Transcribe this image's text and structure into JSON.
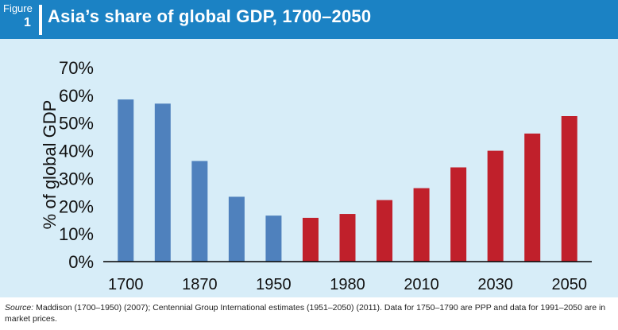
{
  "header": {
    "figure_word": "Figure",
    "figure_number": "1",
    "title": "Asia’s share of global GDP, 1700–2050"
  },
  "footer": {
    "source_label": "Source:",
    "source_text": "Maddison (1700–1950) (2007); Centennial Group International estimates (1951–2050) (2011). Data for 1750–1790 are PPP and data for 1991–2050 are in market prices."
  },
  "colors": {
    "historical": "#4f81bd",
    "projected": "#c0202b",
    "header_bg": "#1b82c4",
    "plot_bg": "#d7edf8"
  },
  "chart_data": {
    "type": "bar",
    "title": "Asia’s share of global GDP, 1700–2050",
    "xlabel": "",
    "ylabel": "% of global GDP",
    "ylim": [
      0,
      70
    ],
    "yticks": [
      0,
      10,
      20,
      30,
      40,
      50,
      60,
      70
    ],
    "ytick_labels": [
      "0%",
      "10%",
      "20%",
      "30%",
      "40%",
      "50%",
      "60%",
      "70%"
    ],
    "x_tick_labels": [
      "1700",
      "1870",
      "1950",
      "1980",
      "2010",
      "2030",
      "2050"
    ],
    "x_tick_bar_index": [
      0,
      2,
      4,
      6,
      8,
      10,
      12
    ],
    "grid": false,
    "legend": "none",
    "values": [
      58.5,
      57,
      36.3,
      23.4,
      16.6,
      15.8,
      17.2,
      22.2,
      26.5,
      34,
      40,
      46.2,
      52.5
    ],
    "series_type": [
      "historical",
      "historical",
      "historical",
      "historical",
      "historical",
      "projected",
      "projected",
      "projected",
      "projected",
      "projected",
      "projected",
      "projected",
      "projected"
    ]
  }
}
